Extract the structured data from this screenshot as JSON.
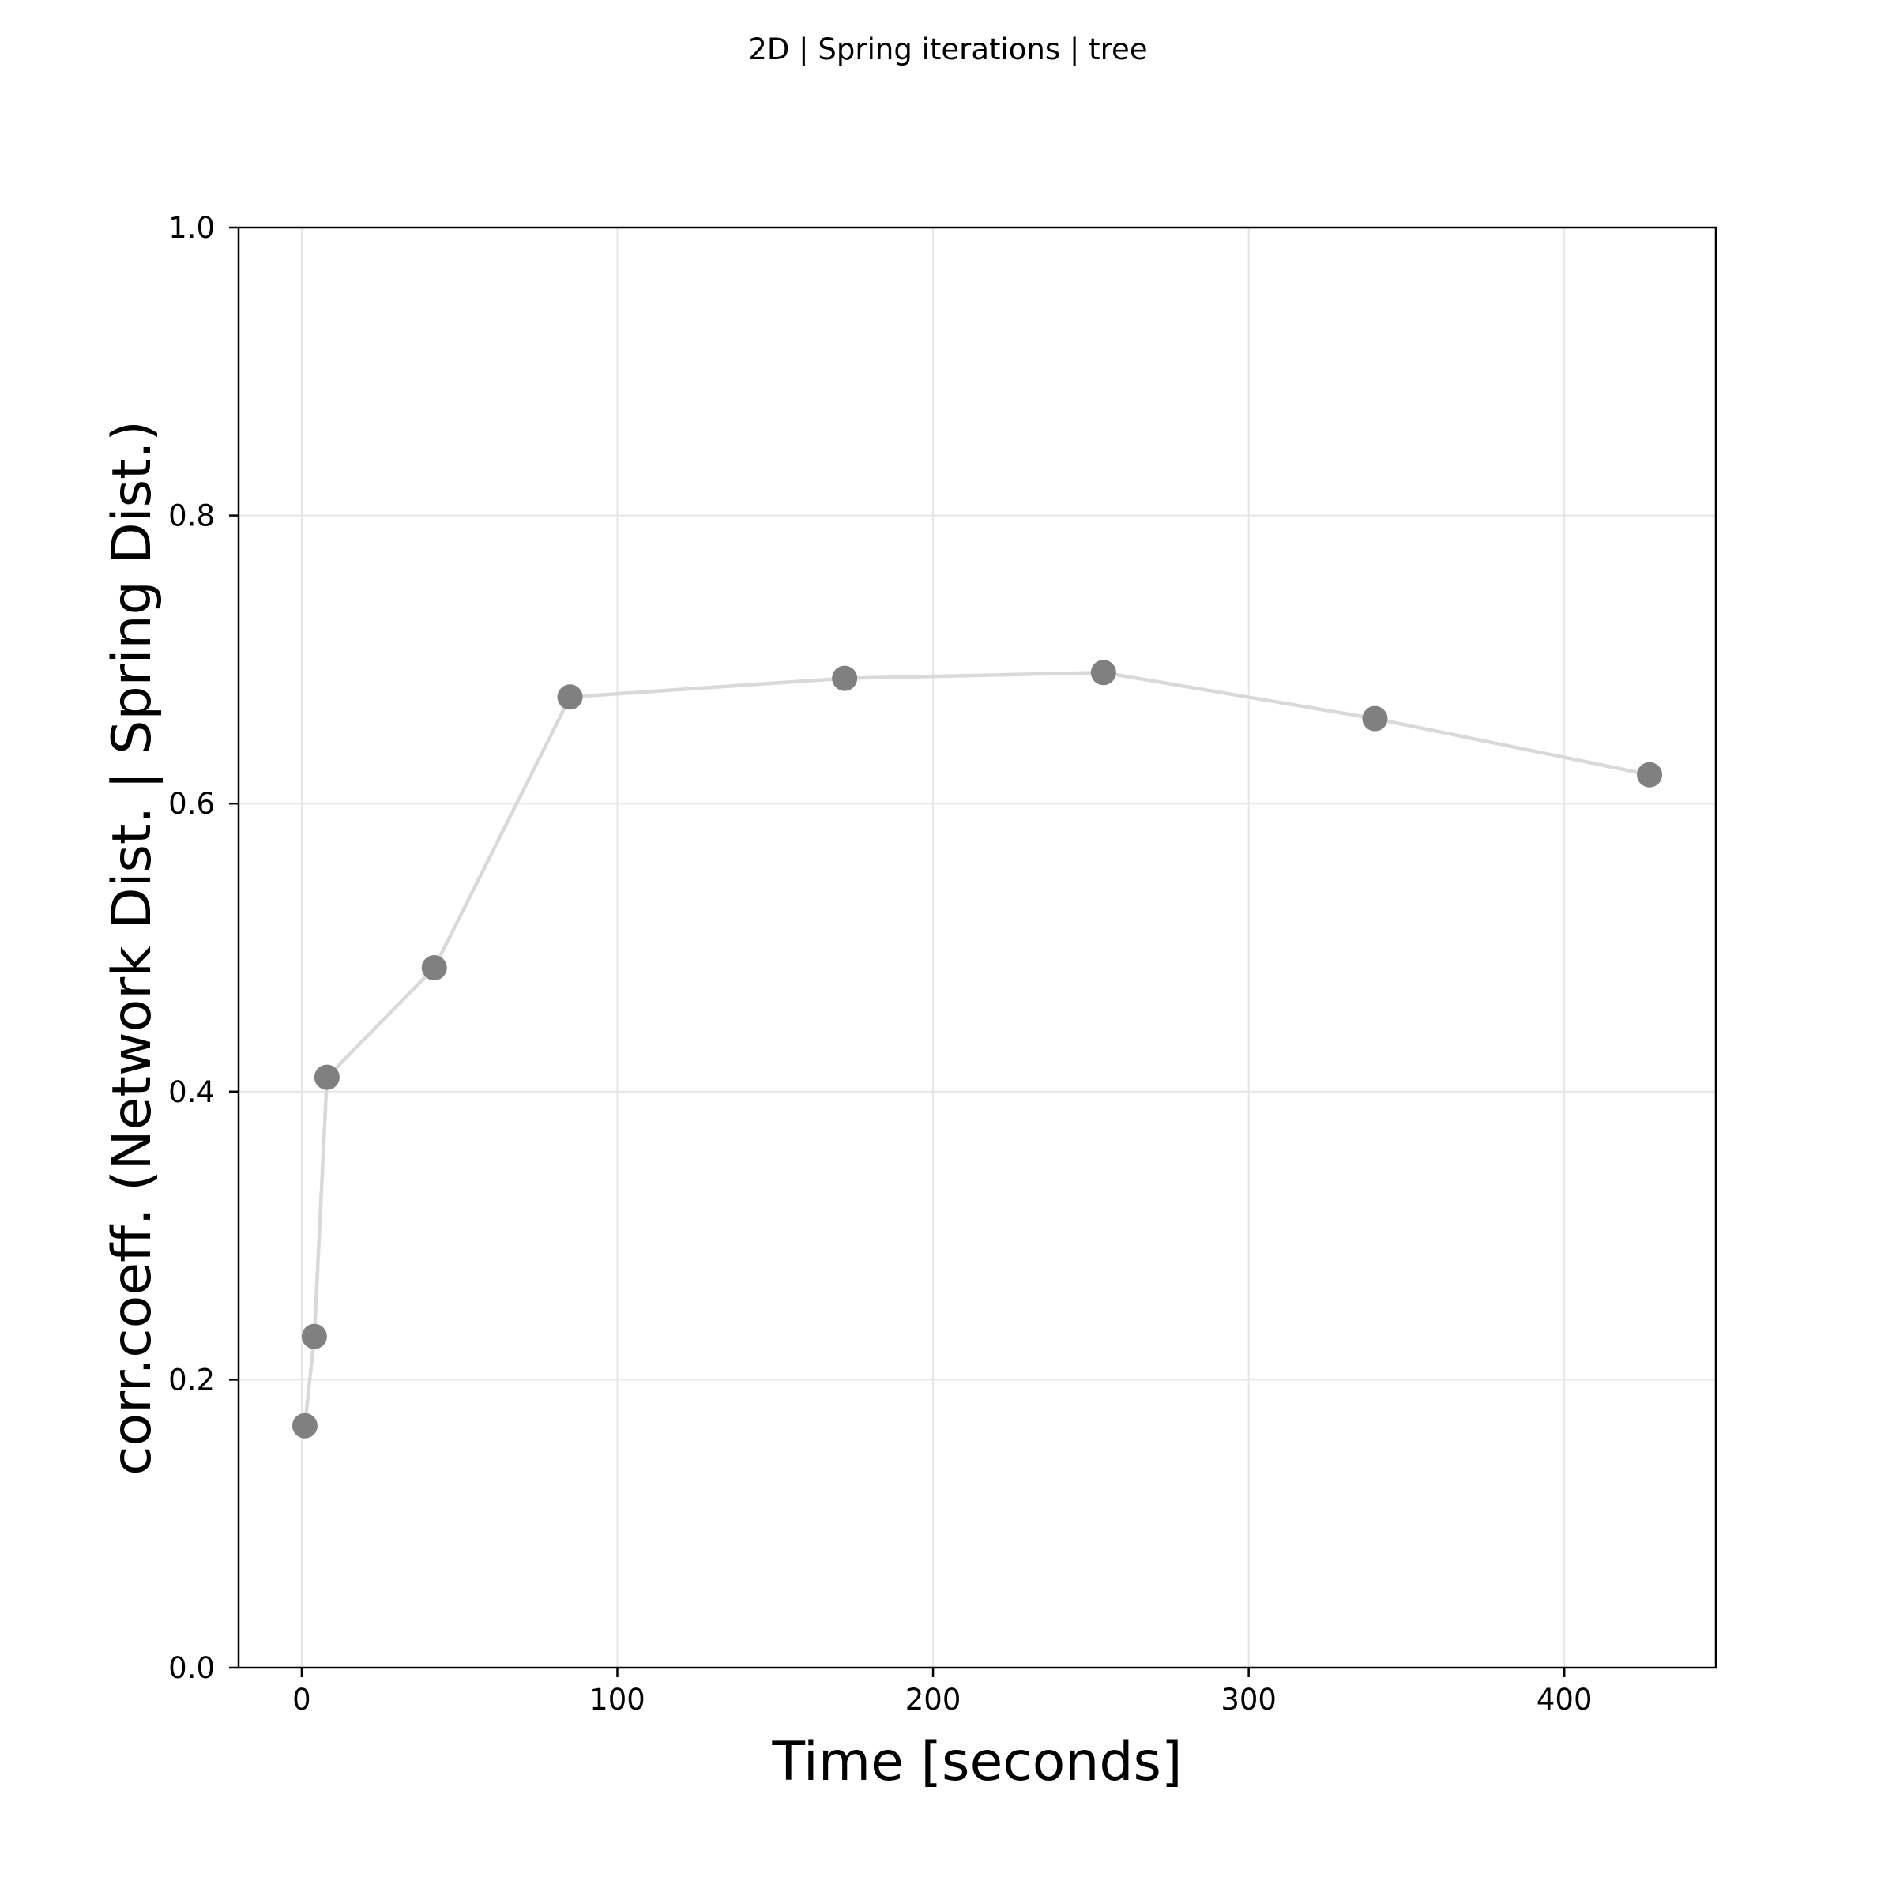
{
  "chart_data": {
    "type": "line",
    "title": "2D | Spring iterations | tree",
    "xlabel": "Time [seconds]",
    "ylabel": "corr.coeff. (Network Dist. | Spring Dist.)",
    "xlim": [
      -20,
      448
    ],
    "ylim": [
      0,
      1
    ],
    "xticks": [
      0,
      100,
      200,
      300,
      400
    ],
    "xtick_labels": [
      "0",
      "100",
      "200",
      "300",
      "400"
    ],
    "yticks": [
      0,
      0.2,
      0.4,
      0.6,
      0.8,
      1.0
    ],
    "ytick_labels": [
      "0.0",
      "0.2",
      "0.4",
      "0.6",
      "0.8",
      "1.0"
    ],
    "grid": true,
    "series": [
      {
        "name": "tree",
        "x": [
          1,
          4,
          8,
          42,
          85,
          172,
          254,
          340,
          427
        ],
        "y": [
          0.168,
          0.23,
          0.41,
          0.486,
          0.674,
          0.687,
          0.691,
          0.659,
          0.62
        ]
      }
    ],
    "colors": {
      "line": "#d9d9d9",
      "marker": "#808080",
      "grid": "#e6e6e6",
      "axes": "#000000"
    }
  }
}
